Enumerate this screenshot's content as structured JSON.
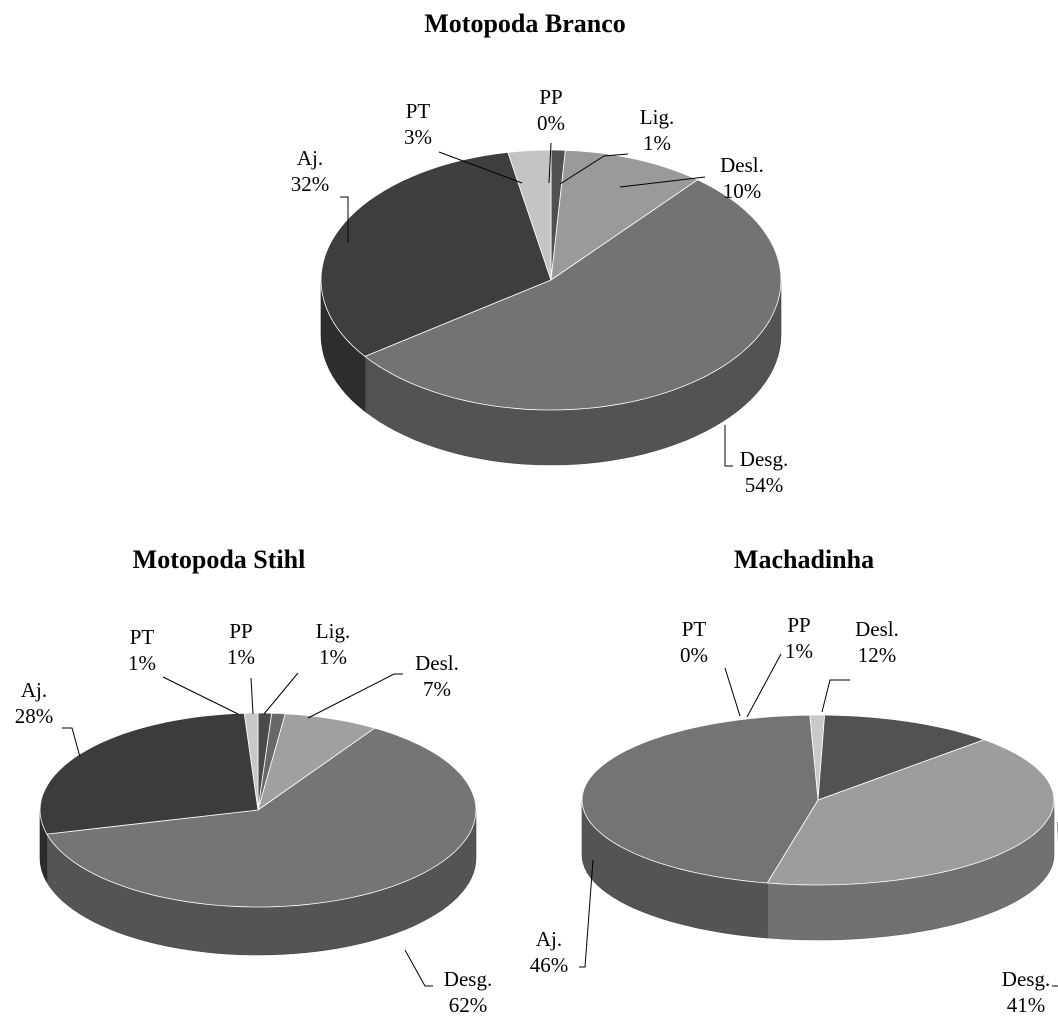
{
  "chart_data": [
    {
      "type": "pie",
      "title": "Motopoda Branco",
      "slices": [
        {
          "label": "PP",
          "value": 0,
          "color": "#3a3a3a"
        },
        {
          "label": "Lig.",
          "value": 1,
          "color": "#505050"
        },
        {
          "label": "Desl.",
          "value": 10,
          "color": "#9a9a9a"
        },
        {
          "label": "Desg.",
          "value": 54,
          "color": "#737373"
        },
        {
          "label": "Aj.",
          "value": 32,
          "color": "#3e3e3e"
        },
        {
          "label": "PT",
          "value": 3,
          "color": "#c4c4c4"
        }
      ]
    },
    {
      "type": "pie",
      "title": "Motopoda Stihl",
      "slices": [
        {
          "label": "PP",
          "value": 1,
          "color": "#4a4a4a"
        },
        {
          "label": "Lig.",
          "value": 1,
          "color": "#686868"
        },
        {
          "label": "Desl.",
          "value": 7,
          "color": "#a0a0a0"
        },
        {
          "label": "Desg.",
          "value": 62,
          "color": "#757575"
        },
        {
          "label": "Aj.",
          "value": 28,
          "color": "#3c3c3c"
        },
        {
          "label": "PT",
          "value": 1,
          "color": "#c8c8c8"
        }
      ]
    },
    {
      "type": "pie",
      "title": "Machadinha",
      "slices": [
        {
          "label": "PP",
          "value": 1,
          "color": "#c9c9c9"
        },
        {
          "label": "Desl.",
          "value": 12,
          "color": "#525252"
        },
        {
          "label": "Desg.",
          "value": 41,
          "color": "#9d9d9d"
        },
        {
          "label": "Aj.",
          "value": 46,
          "color": "#747474"
        },
        {
          "label": "PT",
          "value": 0,
          "color": "#b5b5b5"
        }
      ]
    }
  ]
}
